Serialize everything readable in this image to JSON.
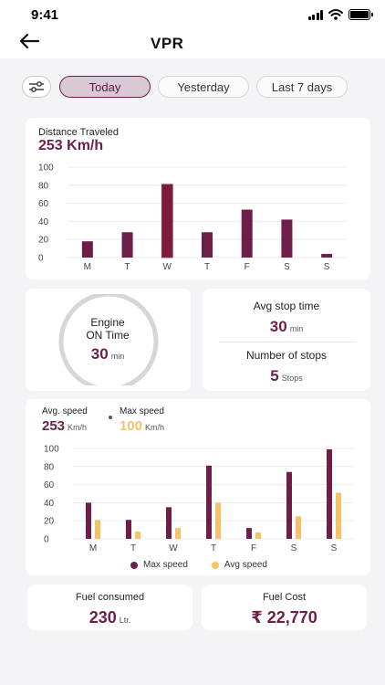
{
  "status": {
    "time": "9:41"
  },
  "header": {
    "title": "VPR"
  },
  "filters": {
    "items": [
      "Today",
      "Yesterday",
      "Last 7 days"
    ],
    "active": "Today"
  },
  "distance": {
    "label": "Distance Traveled",
    "value": "253 Km/h"
  },
  "engine": {
    "line1": "Engine",
    "line2": "ON Time",
    "value": "30",
    "unit": "min"
  },
  "stops": {
    "avg_label": "Avg stop time",
    "avg_value": "30",
    "avg_unit": "min",
    "count_label": "Number of stops",
    "count_value": "5",
    "count_unit": "Stops"
  },
  "speed": {
    "avg_label": "Avg. speed",
    "avg_value": "253",
    "avg_unit": "Km/h",
    "max_label": "Max speed",
    "max_value": "100",
    "max_unit": "Km/h",
    "legend_max": "Max speed",
    "legend_avg": "Avg speed"
  },
  "fuel": {
    "consumed_label": "Fuel consumed",
    "consumed_value": "230",
    "consumed_unit": "Ltr.",
    "cost_label": "Fuel Cost",
    "cost_value": "₹ 22,770"
  },
  "colors": {
    "primary": "#6d1f4a",
    "highlight": "#7a1c3a",
    "avg": "#f5c26b"
  },
  "chart_data": [
    {
      "type": "bar",
      "categories": [
        "M",
        "T",
        "W",
        "T",
        "F",
        "S",
        "S"
      ],
      "series": [
        {
          "values": [
            18,
            28,
            81,
            28,
            53,
            42,
            4
          ]
        }
      ],
      "highlight_index": 2,
      "ylim": [
        0,
        100
      ],
      "yticks": [
        0,
        20,
        40,
        60,
        80,
        100
      ],
      "grid": true
    },
    {
      "type": "bar",
      "categories": [
        "M",
        "T",
        "W",
        "T",
        "F",
        "S",
        "S"
      ],
      "series": [
        {
          "name": "Max speed",
          "values": [
            40,
            21,
            35,
            81,
            12,
            74,
            99
          ]
        },
        {
          "name": "Avg speed",
          "values": [
            21,
            8,
            12,
            40,
            7,
            25,
            51
          ]
        }
      ],
      "ylim": [
        0,
        100
      ],
      "yticks": [
        0,
        20,
        40,
        60,
        80,
        100
      ],
      "grid": true,
      "legend": "bottom"
    }
  ]
}
